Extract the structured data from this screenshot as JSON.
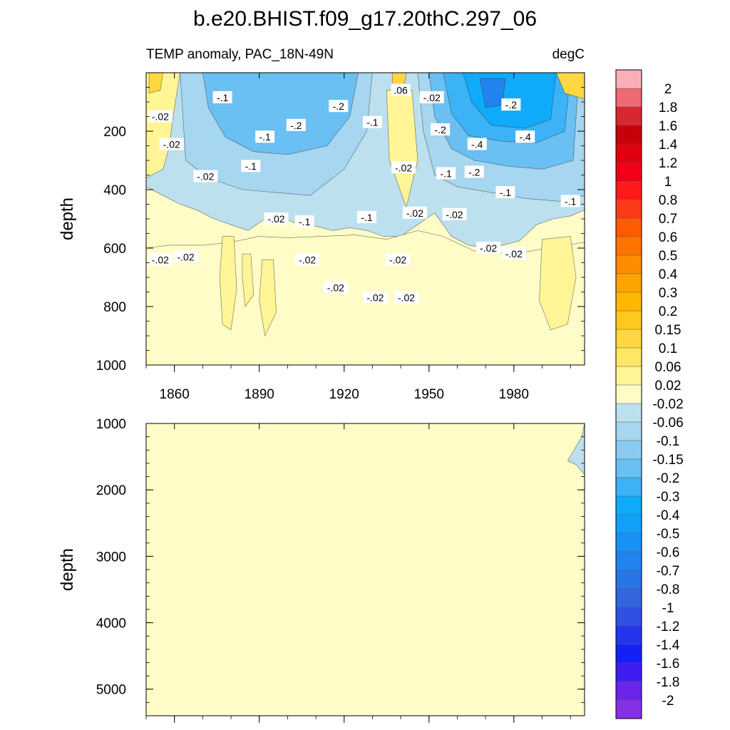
{
  "figure_title": "b.e20.BHIST.f09_g17.20thC.297_06",
  "chart_data": [
    {
      "type": "heatmap",
      "panel": "upper",
      "title_left": "TEMP anomaly, PAC_18N-49N",
      "title_right": "degC",
      "ylabel": "depth",
      "xlabel": "",
      "xlim": [
        1850,
        2005
      ],
      "ylim": [
        1000,
        0
      ],
      "x_ticks": [
        1860,
        1890,
        1920,
        1950,
        1980
      ],
      "y_ticks": [
        200,
        400,
        600,
        800,
        1000
      ],
      "background_level": "0.02",
      "regions": [
        {
          "level": "-0.06",
          "points": [
            [
              1850,
              390
            ],
            [
              1856,
              420
            ],
            [
              1862,
              450
            ],
            [
              1868,
              470
            ],
            [
              1874,
              500
            ],
            [
              1880,
              520
            ],
            [
              1886,
              540
            ],
            [
              1892,
              500
            ],
            [
              1898,
              495
            ],
            [
              1904,
              520
            ],
            [
              1910,
              525
            ],
            [
              1916,
              540
            ],
            [
              1922,
              530
            ],
            [
              1928,
              540
            ],
            [
              1934,
              560
            ],
            [
              1940,
              560
            ],
            [
              1946,
              520
            ],
            [
              1952,
              480
            ],
            [
              1958,
              560
            ],
            [
              1964,
              590
            ],
            [
              1970,
              600
            ],
            [
              1976,
              590
            ],
            [
              1982,
              575
            ],
            [
              1988,
              520
            ],
            [
              1994,
              500
            ],
            [
              2000,
              490
            ],
            [
              2005,
              470
            ],
            [
              2005,
              0
            ],
            [
              1850,
              0
            ]
          ]
        },
        {
          "level": "0.06",
          "points": [
            [
              1850,
              0
            ],
            [
              1862,
              0
            ],
            [
              1860,
              120
            ],
            [
              1858,
              260
            ],
            [
              1856,
              330
            ],
            [
              1850,
              360
            ]
          ]
        },
        {
          "level": "0.06",
          "points": [
            [
              1935,
              60
            ],
            [
              1944,
              60
            ],
            [
              1946,
              300
            ],
            [
              1942,
              460
            ],
            [
              1936,
              300
            ]
          ]
        },
        {
          "level": "0.06",
          "points": [
            [
              1910,
              0
            ],
            [
              1922,
              0
            ],
            [
              1920,
              90
            ],
            [
              1915,
              140
            ],
            [
              1910,
              70
            ]
          ]
        },
        {
          "level": "-0.1",
          "points": [
            [
              1862,
              0
            ],
            [
              1930,
              0
            ],
            [
              1928,
              200
            ],
            [
              1920,
              330
            ],
            [
              1908,
              420
            ],
            [
              1896,
              410
            ],
            [
              1884,
              400
            ],
            [
              1872,
              360
            ],
            [
              1864,
              300
            ],
            [
              1863,
              150
            ]
          ]
        },
        {
          "level": "-0.1",
          "points": [
            [
              1946,
              0
            ],
            [
              2005,
              0
            ],
            [
              2005,
              420
            ],
            [
              1996,
              440
            ],
            [
              1984,
              430
            ],
            [
              1972,
              410
            ],
            [
              1960,
              390
            ],
            [
              1952,
              350
            ],
            [
              1948,
              200
            ]
          ]
        },
        {
          "level": "-0.2",
          "points": [
            [
              1870,
              0
            ],
            [
              1925,
              0
            ],
            [
              1922,
              150
            ],
            [
              1914,
              250
            ],
            [
              1900,
              280
            ],
            [
              1888,
              270
            ],
            [
              1878,
              220
            ],
            [
              1872,
              120
            ]
          ]
        },
        {
          "level": "-0.2",
          "points": [
            [
              1950,
              0
            ],
            [
              2003,
              0
            ],
            [
              2001,
              300
            ],
            [
              1990,
              330
            ],
            [
              1978,
              320
            ],
            [
              1966,
              300
            ],
            [
              1958,
              260
            ],
            [
              1952,
              150
            ]
          ]
        },
        {
          "level": "-0.3",
          "points": [
            [
              1955,
              0
            ],
            [
              2000,
              0
            ],
            [
              1998,
              200
            ],
            [
              1988,
              240
            ],
            [
              1976,
              235
            ],
            [
              1964,
              215
            ],
            [
              1958,
              140
            ]
          ]
        },
        {
          "level": "-0.4",
          "points": [
            [
              1962,
              0
            ],
            [
              1995,
              0
            ],
            [
              1993,
              160
            ],
            [
              1984,
              190
            ],
            [
              1972,
              180
            ],
            [
              1965,
              100
            ]
          ]
        },
        {
          "level": "-0.5",
          "points": [
            [
              1968,
              20
            ],
            [
              1977,
              20
            ],
            [
              1976,
              110
            ],
            [
              1970,
              120
            ]
          ]
        },
        {
          "level": "0.02",
          "points": [
            [
              1850,
              600
            ],
            [
              1858,
              590
            ],
            [
              1870,
              590
            ],
            [
              1880,
              580
            ],
            [
              1890,
              560
            ],
            [
              1900,
              565
            ],
            [
              1912,
              560
            ],
            [
              1924,
              555
            ],
            [
              1935,
              570
            ],
            [
              1946,
              540
            ],
            [
              1955,
              560
            ],
            [
              1966,
              610
            ],
            [
              1980,
              620
            ],
            [
              1992,
              600
            ],
            [
              2005,
              580
            ],
            [
              2005,
              1000
            ],
            [
              1850,
              1000
            ]
          ]
        },
        {
          "level": "0.06",
          "points": [
            [
              1877,
              560
            ],
            [
              1881,
              560
            ],
            [
              1882,
              740
            ],
            [
              1880,
              880
            ],
            [
              1877,
              860
            ],
            [
              1876,
              700
            ]
          ]
        },
        {
          "level": "0.06",
          "points": [
            [
              1884,
              620
            ],
            [
              1887,
              620
            ],
            [
              1888,
              760
            ],
            [
              1885,
              800
            ],
            [
              1884,
              700
            ]
          ]
        },
        {
          "level": "0.06",
          "points": [
            [
              1891,
              640
            ],
            [
              1895,
              640
            ],
            [
              1896,
              820
            ],
            [
              1892,
              900
            ],
            [
              1890,
              780
            ]
          ]
        },
        {
          "level": "0.06",
          "points": [
            [
              1990,
              570
            ],
            [
              2000,
              560
            ],
            [
              2002,
              700
            ],
            [
              1999,
              860
            ],
            [
              1993,
              880
            ],
            [
              1989,
              780
            ]
          ]
        },
        {
          "level": "0.15",
          "points": [
            [
              1995,
              0
            ],
            [
              2005,
              0
            ],
            [
              2005,
              90
            ],
            [
              1998,
              70
            ]
          ]
        },
        {
          "level": "0.15",
          "points": [
            [
              1851,
              0
            ],
            [
              1856,
              0
            ],
            [
              1855,
              60
            ],
            [
              1851,
              70
            ]
          ]
        },
        {
          "level": "0.15",
          "points": [
            [
              1937,
              0
            ],
            [
              1942,
              0
            ],
            [
              1941,
              60
            ],
            [
              1937,
              50
            ]
          ]
        }
      ],
      "contour_labels": [
        {
          "text": "-.1",
          "x": 1877,
          "y": 85
        },
        {
          "text": "-.02",
          "x": 1855,
          "y": 150
        },
        {
          "text": "-.02",
          "x": 1859,
          "y": 245
        },
        {
          "text": "-.1",
          "x": 1892,
          "y": 220
        },
        {
          "text": "-.2",
          "x": 1903,
          "y": 180
        },
        {
          "text": "-.1",
          "x": 1887,
          "y": 320
        },
        {
          "text": "-.02",
          "x": 1871,
          "y": 355
        },
        {
          "text": "-.2",
          "x": 1918,
          "y": 115
        },
        {
          "text": ".06",
          "x": 1940,
          "y": 60
        },
        {
          "text": "-.02",
          "x": 1951,
          "y": 85
        },
        {
          "text": "-.1",
          "x": 1930,
          "y": 170
        },
        {
          "text": "-.2",
          "x": 1954,
          "y": 195
        },
        {
          "text": "-.4",
          "x": 1967,
          "y": 245
        },
        {
          "text": "-.2",
          "x": 1979,
          "y": 110
        },
        {
          "text": "-.4",
          "x": 1984,
          "y": 220
        },
        {
          "text": "-.02",
          "x": 1941,
          "y": 325
        },
        {
          "text": "-.1",
          "x": 1956,
          "y": 345
        },
        {
          "text": "-.2",
          "x": 1966,
          "y": 340
        },
        {
          "text": "-.1",
          "x": 1977,
          "y": 410
        },
        {
          "text": "-.1",
          "x": 2000,
          "y": 440
        },
        {
          "text": "-.02",
          "x": 1896,
          "y": 500
        },
        {
          "text": "-.1",
          "x": 1906,
          "y": 510
        },
        {
          "text": "-.1",
          "x": 1928,
          "y": 495
        },
        {
          "text": "-.02",
          "x": 1945,
          "y": 480
        },
        {
          "text": "-.02",
          "x": 1959,
          "y": 485
        },
        {
          "text": "-.02",
          "x": 1855,
          "y": 640
        },
        {
          "text": "-.02",
          "x": 1864,
          "y": 630
        },
        {
          "text": "-.02",
          "x": 1907,
          "y": 640
        },
        {
          "text": "-.02",
          "x": 1939,
          "y": 640
        },
        {
          "text": "-.02",
          "x": 1971,
          "y": 600
        },
        {
          "text": "-.02",
          "x": 1980,
          "y": 620
        },
        {
          "text": "-.02",
          "x": 1917,
          "y": 735
        },
        {
          "text": "-.02",
          "x": 1931,
          "y": 770
        },
        {
          "text": "-.02",
          "x": 1942,
          "y": 770
        }
      ]
    },
    {
      "type": "heatmap",
      "panel": "lower",
      "ylabel": "depth",
      "xlim": [
        1850,
        2005
      ],
      "ylim": [
        5400,
        1000
      ],
      "y_ticks": [
        1000,
        2000,
        3000,
        4000,
        5000
      ],
      "background_level": "0.02",
      "regions": [
        {
          "level": "-0.06",
          "points": [
            [
              2005,
              1000
            ],
            [
              2005,
              1770
            ],
            [
              2002,
              1620
            ],
            [
              1999,
              1560
            ],
            [
              2001,
              1420
            ],
            [
              2004,
              1200
            ]
          ]
        }
      ],
      "contour_labels": []
    }
  ],
  "colorbar": {
    "levels": [
      "2",
      "1.8",
      "1.6",
      "1.4",
      "1.2",
      "1",
      "0.8",
      "0.7",
      "0.6",
      "0.5",
      "0.4",
      "0.3",
      "0.2",
      "0.15",
      "0.1",
      "0.06",
      "0.02",
      "-0.02",
      "-0.06",
      "-0.1",
      "-0.15",
      "-0.2",
      "-0.3",
      "-0.4",
      "-0.5",
      "-0.6",
      "-0.7",
      "-0.8",
      "-1",
      "-1.2",
      "-1.4",
      "-1.6",
      "-1.8",
      "-2"
    ],
    "colors": [
      "#f9b0b7",
      "#ec6b73",
      "#d8282f",
      "#c8000a",
      "#e0000e",
      "#ef0018",
      "#ff1a1a",
      "#ff3a1a",
      "#ff5a00",
      "#ff7300",
      "#ff8c00",
      "#ffa300",
      "#ffb800",
      "#ffc81e",
      "#ffd740",
      "#ffe766",
      "#fff596",
      "#fffcc8",
      "#bde0ef",
      "#a6d6f0",
      "#8acaf0",
      "#6abff3",
      "#3cb3f6",
      "#0fabfa",
      "#12a0f8",
      "#1892f4",
      "#2184ee",
      "#2a75e4",
      "#3366dc",
      "#3050e2",
      "#2336ee",
      "#1520f8",
      "#3f1df2",
      "#6a24ec",
      "#8630e6"
    ]
  }
}
